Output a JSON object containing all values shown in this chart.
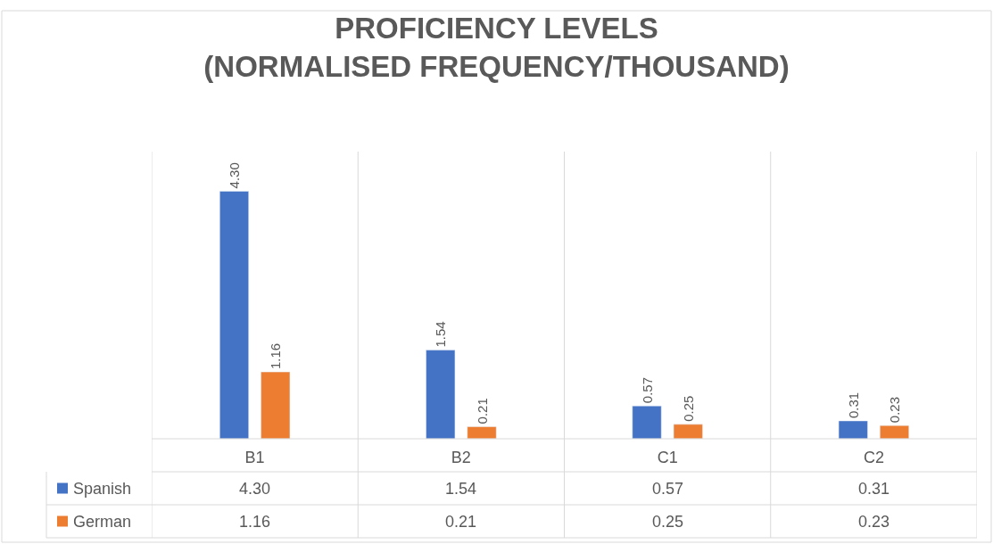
{
  "chart_data": {
    "type": "bar",
    "title": "PROFICIENCY LEVELS\n(NORMALISED FREQUENCY/THOUSAND)",
    "categories": [
      "B1",
      "B2",
      "C1",
      "C2"
    ],
    "series": [
      {
        "name": "Spanish",
        "color": "#4472c4",
        "values": [
          4.3,
          1.54,
          0.57,
          0.31
        ],
        "value_labels": [
          "4.30",
          "1.54",
          "0.57",
          "0.31"
        ]
      },
      {
        "name": "German",
        "color": "#ed7d31",
        "values": [
          1.16,
          0.21,
          0.25,
          0.23
        ],
        "value_labels": [
          "1.16",
          "0.21",
          "0.25",
          "0.23"
        ]
      }
    ],
    "legend": "bottom"
  }
}
